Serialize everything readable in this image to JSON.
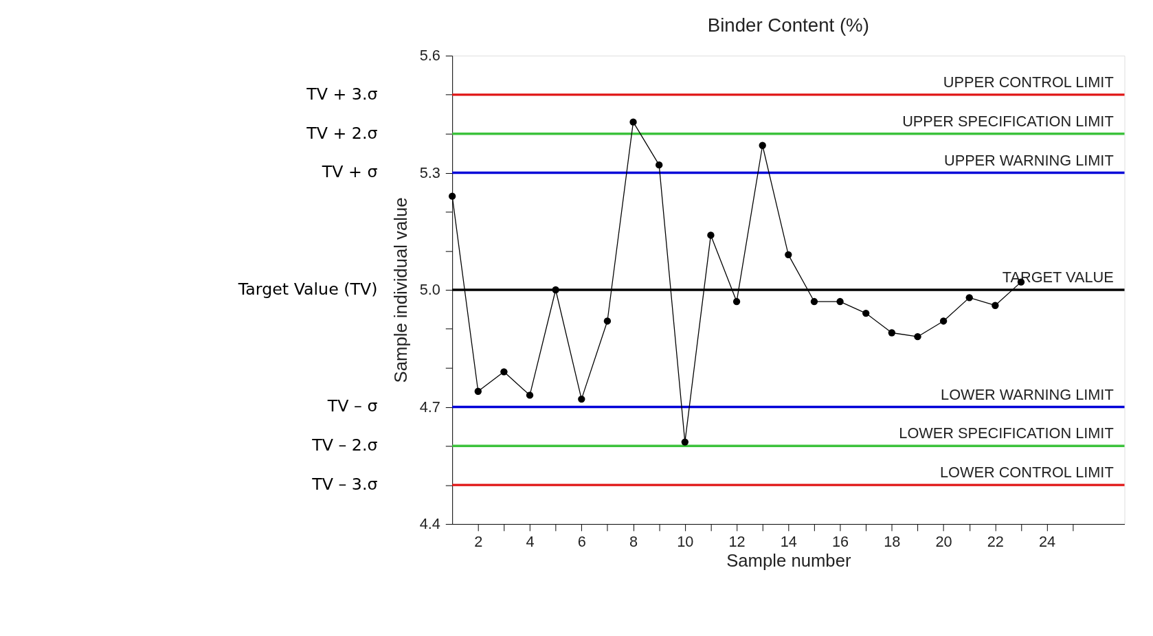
{
  "chart_data": {
    "type": "line",
    "title": "Binder Content (%)",
    "xlabel": "Sample number",
    "ylabel": "Sample individual value",
    "x": [
      1,
      2,
      3,
      4,
      5,
      6,
      7,
      8,
      9,
      10,
      11,
      12,
      13,
      14,
      15,
      16,
      17,
      18,
      19,
      20,
      21,
      22,
      23
    ],
    "series": [
      {
        "color": "#000000",
        "values": [
          5.24,
          4.74,
          4.79,
          4.73,
          5.0,
          4.72,
          4.92,
          5.43,
          5.32,
          4.61,
          5.14,
          4.97,
          5.37,
          5.09,
          4.97,
          4.97,
          4.94,
          4.89,
          4.88,
          4.92,
          4.98,
          4.96,
          5.02
        ]
      }
    ],
    "marker": "circle",
    "line_style": "solid",
    "grid": false,
    "xlim": [
      1,
      27
    ],
    "xticks": [
      2,
      {
        "value": 3,
        "label": null
      },
      4,
      {
        "value": 5,
        "label": null
      },
      6,
      {
        "value": 7,
        "label": null
      },
      8,
      {
        "value": 9,
        "label": null
      },
      10,
      {
        "value": 11,
        "label": null
      },
      12,
      {
        "value": 13,
        "label": null
      },
      14,
      {
        "value": 15,
        "label": null
      },
      16,
      {
        "value": 17,
        "label": null
      },
      18,
      {
        "value": 19,
        "label": null
      },
      20,
      {
        "value": 21,
        "label": null
      },
      22,
      {
        "value": 23,
        "label": null
      },
      24,
      {
        "value": 25,
        "label": null
      }
    ],
    "ylim": [
      4.4,
      5.6
    ],
    "yticks": [
      4.4,
      {
        "value": 4.5,
        "label": null
      },
      {
        "value": 4.6,
        "label": null
      },
      4.7,
      {
        "value": 4.8,
        "label": null
      },
      {
        "value": 4.9,
        "label": null
      },
      {
        "value": 5.0,
        "label": "5.0"
      },
      {
        "value": 5.1,
        "label": null
      },
      {
        "value": 5.2,
        "label": null
      },
      5.3,
      {
        "value": 5.4,
        "label": null
      },
      {
        "value": 5.5,
        "label": null
      },
      5.6
    ],
    "ref_lines": [
      {
        "axis": "y",
        "value": 5.5,
        "label": "UPPER CONTROL LIMIT",
        "color": "#e01414"
      },
      {
        "axis": "y",
        "value": 5.4,
        "label": "UPPER SPECIFICATION LIMIT",
        "color": "#3cc23c"
      },
      {
        "axis": "y",
        "value": 5.3,
        "label": "UPPER WARNING LIMIT",
        "color": "#0000d8"
      },
      {
        "axis": "y",
        "value": 5.0,
        "label": "TARGET VALUE",
        "color": "#000000"
      },
      {
        "axis": "y",
        "value": 4.7,
        "label": "LOWER WARNING LIMIT",
        "color": "#0000d8"
      },
      {
        "axis": "y",
        "value": 4.6,
        "label": "LOWER SPECIFICATION LIMIT",
        "color": "#3cc23c"
      },
      {
        "axis": "y",
        "value": 4.5,
        "label": "LOWER CONTROL LIMIT",
        "color": "#e01414"
      }
    ],
    "annotations": [
      "TV + 3.σ",
      "TV + 2.σ",
      "TV + σ",
      "Target Value (TV)",
      "TV – σ",
      "TV – 2.σ",
      "TV – 3.σ"
    ]
  }
}
